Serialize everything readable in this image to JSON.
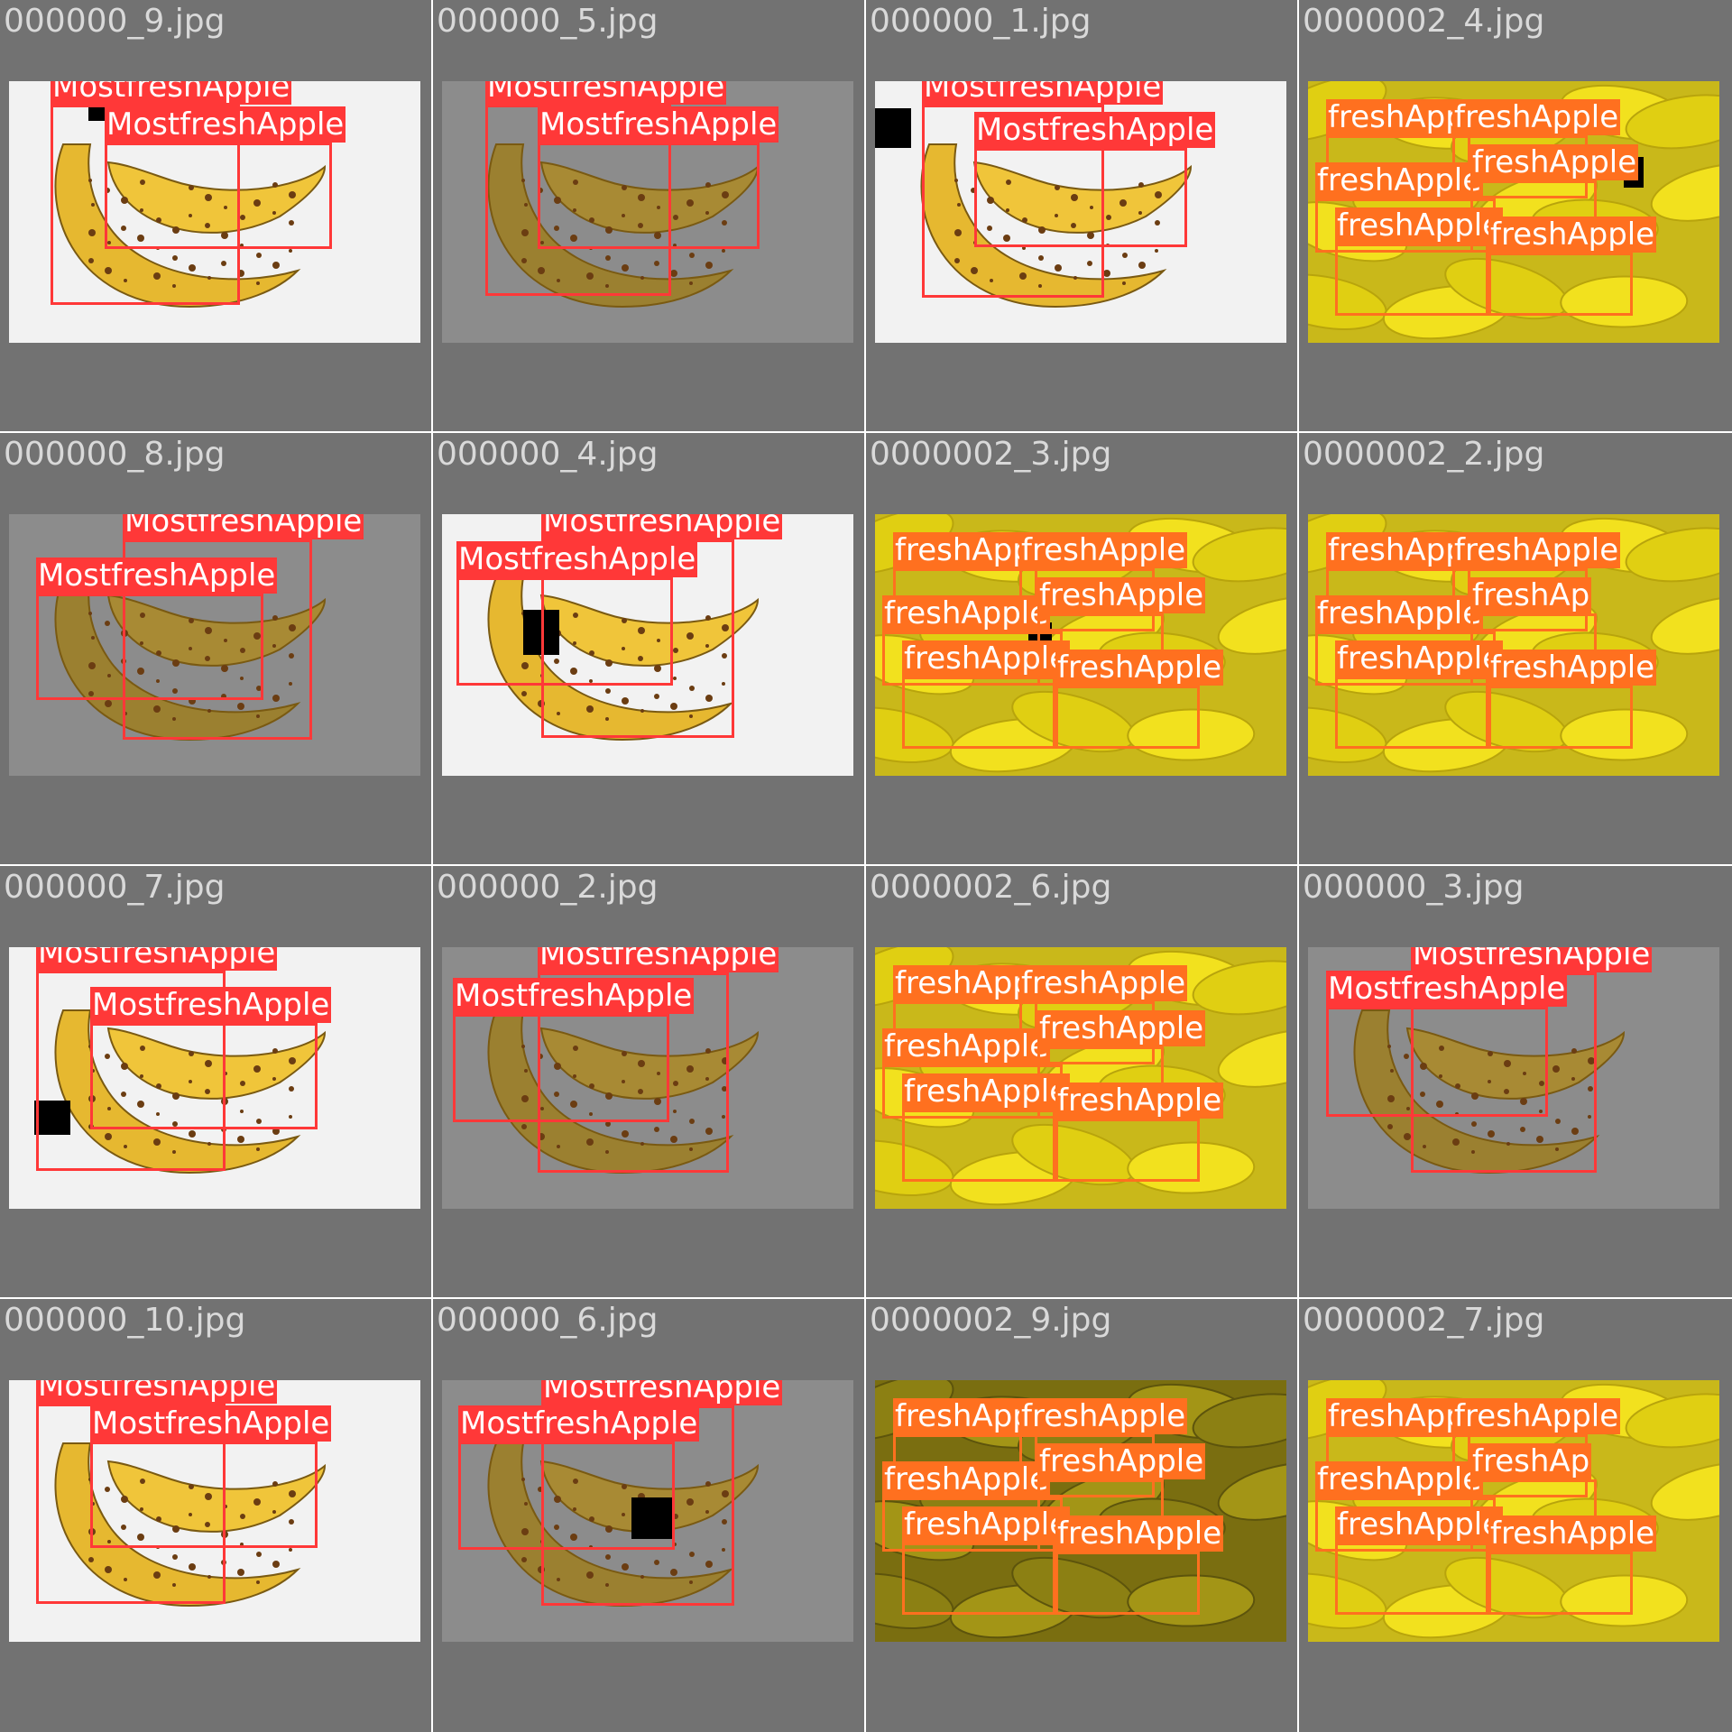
{
  "palette": {
    "most_fresh": "#ff3838",
    "fresh": "#ff701f",
    "background": "#727272"
  },
  "tiles": [
    {
      "filename": "000000_9.jpg",
      "scene": "single",
      "labels": [
        "MostfreshApple",
        "MostfreshApple"
      ]
    },
    {
      "filename": "000000_5.jpg",
      "scene": "single",
      "labels": [
        "MostfreshApple",
        "MostfreshApple"
      ]
    },
    {
      "filename": "000000_1.jpg",
      "scene": "single",
      "labels": [
        "MostfreshApple",
        "MostfreshApple"
      ]
    },
    {
      "filename": "0000002_4.jpg",
      "scene": "bunch",
      "labels": [
        "freshApple",
        "freshApple",
        "freshApple",
        "freshApple",
        "freshApple",
        "freshApple"
      ]
    },
    {
      "filename": "000000_8.jpg",
      "scene": "single",
      "labels": [
        "MostfreshApple",
        "MostfreshApple"
      ]
    },
    {
      "filename": "000000_4.jpg",
      "scene": "single",
      "labels": [
        "MostfreshApple",
        "MostfreshApple"
      ]
    },
    {
      "filename": "0000002_3.jpg",
      "scene": "bunch",
      "labels": [
        "freshApple",
        "freshApple",
        "freshApple",
        "freshApple",
        "freshApple",
        "freshApple"
      ]
    },
    {
      "filename": "0000002_2.jpg",
      "scene": "bunch",
      "labels": [
        "freshApple",
        "freshApple",
        "freshApple",
        "freshAp",
        "freshApple",
        "freshApple"
      ]
    },
    {
      "filename": "000000_7.jpg",
      "scene": "single",
      "labels": [
        "MostfreshApple",
        "MostfreshApple"
      ]
    },
    {
      "filename": "000000_2.jpg",
      "scene": "single",
      "labels": [
        "MostfreshApple",
        "MostfreshApple"
      ]
    },
    {
      "filename": "0000002_6.jpg",
      "scene": "bunch",
      "labels": [
        "freshApple",
        "freshApple",
        "freshApple",
        "freshApple",
        "freshApple",
        "freshApple"
      ]
    },
    {
      "filename": "000000_3.jpg",
      "scene": "single",
      "labels": [
        "MostfreshApple",
        "MostfreshApple"
      ]
    },
    {
      "filename": "000000_10.jpg",
      "scene": "single",
      "labels": [
        "MostfreshApple",
        "MostfreshApple"
      ]
    },
    {
      "filename": "000000_6.jpg",
      "scene": "single",
      "labels": [
        "MostfreshApple",
        "MostfreshApple"
      ]
    },
    {
      "filename": "0000002_9.jpg",
      "scene": "bunch",
      "labels": [
        "freshApple",
        "freshApple",
        "freshApple",
        "freshApple",
        "freshApple",
        "freshApple"
      ]
    },
    {
      "filename": "0000002_7.jpg",
      "scene": "bunch",
      "labels": [
        "freshApple",
        "freshApple",
        "freshApple",
        "freshAp",
        "freshApple",
        "freshApple"
      ]
    }
  ]
}
